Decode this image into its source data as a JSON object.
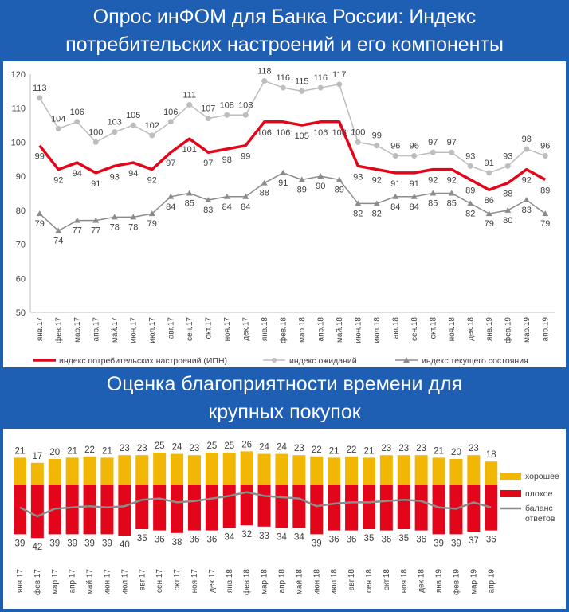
{
  "header_top": {
    "line1": "Опрос инФОМ для Банка России: Индекс",
    "line2": "потребительских настроений и его компоненты"
  },
  "header_bottom": {
    "line1": "Оценка благоприятности времени для",
    "line2": "крупных покупок"
  },
  "colors": {
    "background": "#1f5fb3",
    "ipn": "#e3061a",
    "expect": "#bdbdbd",
    "current": "#8c8c8c",
    "good": "#f2b705",
    "bad": "#e3061a",
    "balance": "#8c8c8c"
  },
  "chart_data": [
    {
      "type": "line",
      "categories": [
        "янв.17",
        "фев.17",
        "мар.17",
        "апр.17",
        "май.17",
        "июн.17",
        "июл.17",
        "авг.17",
        "сен.17",
        "окт.17",
        "ноя.17",
        "дек.17",
        "янв.18",
        "фев.18",
        "мар.18",
        "апр.18",
        "май.18",
        "июн.18",
        "июл.18",
        "авг.18",
        "сен.18",
        "окт.18",
        "ноя.18",
        "дек.18",
        "янв.19",
        "фев.19",
        "мар.19",
        "апр.19"
      ],
      "ylim": [
        50,
        120
      ],
      "yticks": [
        50,
        60,
        70,
        80,
        90,
        100,
        110,
        120
      ],
      "series": [
        {
          "name": "индекс потребительских настроений (ИПН)",
          "values": [
            99,
            92,
            94,
            91,
            93,
            94,
            92,
            97,
            101,
            97,
            98,
            99,
            106,
            106,
            105,
            106,
            106,
            93,
            92,
            91,
            91,
            92,
            92,
            89,
            86,
            88,
            92,
            89
          ]
        },
        {
          "name": "индекс ожиданий",
          "values": [
            113,
            104,
            106,
            100,
            103,
            105,
            102,
            106,
            111,
            107,
            108,
            108,
            118,
            116,
            115,
            116,
            117,
            100,
            99,
            96,
            96,
            97,
            97,
            93,
            91,
            93,
            98,
            96
          ]
        },
        {
          "name": "индекс текущего состояния",
          "values": [
            79,
            74,
            77,
            77,
            78,
            78,
            79,
            84,
            85,
            83,
            84,
            84,
            88,
            91,
            89,
            90,
            89,
            82,
            82,
            84,
            84,
            85,
            85,
            82,
            79,
            80,
            83,
            79
          ]
        }
      ]
    },
    {
      "type": "bar",
      "categories": [
        "янв.17",
        "фев.17",
        "мар.17",
        "апр.17",
        "май.17",
        "июн.17",
        "июл.17",
        "авг.17",
        "сен.17",
        "окт.17",
        "ноя.17",
        "дек.17",
        "янв.18",
        "фев.18",
        "мар.18",
        "апр.18",
        "май.18",
        "июн.18",
        "июл.18",
        "авг.18",
        "сен.18",
        "окт.18",
        "ноя.18",
        "дек.18",
        "янв.19",
        "фев.19",
        "мар.19",
        "апр.19"
      ],
      "series": [
        {
          "name": "хорошее",
          "values": [
            21,
            17,
            20,
            21,
            22,
            21,
            23,
            23,
            25,
            24,
            23,
            25,
            25,
            26,
            24,
            24,
            23,
            22,
            21,
            22,
            21,
            23,
            23,
            23,
            21,
            20,
            23,
            18
          ]
        },
        {
          "name": "плохое",
          "values": [
            39,
            42,
            39,
            39,
            39,
            39,
            40,
            35,
            36,
            38,
            36,
            36,
            34,
            32,
            33,
            34,
            34,
            39,
            36,
            36,
            35,
            36,
            35,
            36,
            39,
            39,
            37,
            36
          ]
        },
        {
          "name": "баланс ответов",
          "values": [
            -18,
            -25,
            -19,
            -18,
            -17,
            -18,
            -17,
            -12,
            -11,
            -14,
            -13,
            -11,
            -9,
            -6,
            -9,
            -10,
            -11,
            -17,
            -15,
            -14,
            -14,
            -13,
            -12,
            -13,
            -18,
            -19,
            -14,
            -18
          ]
        }
      ],
      "legend": [
        "хорошее",
        "плохое",
        "баланс",
        "ответов"
      ]
    }
  ]
}
